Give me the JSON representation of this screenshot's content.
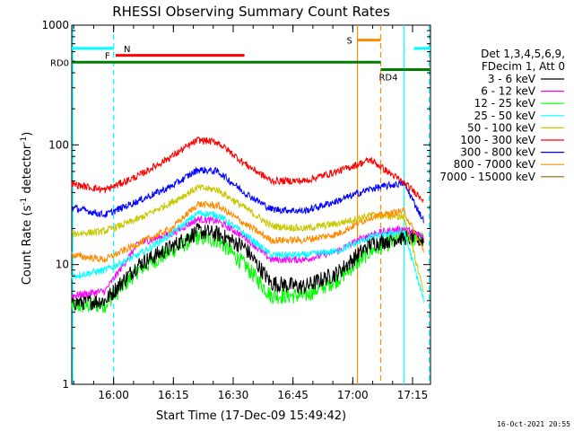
{
  "chart_data": {
    "type": "line",
    "title": "RHESSI Observing Summary Count Rates",
    "xlabel": "Start Time (17-Dec-09 15:49:42)",
    "ylabel_main": "Count Rate (s",
    "ylabel_sup1": "-1",
    "ylabel_mid": " detector",
    "ylabel_sup2": "-1",
    "ylabel_end": ")",
    "y_scale": "log",
    "ylim": [
      1,
      1000
    ],
    "xlim": [
      0,
      5400
    ],
    "x_ticks": [
      {
        "t": 630,
        "label": "16:00"
      },
      {
        "t": 1530,
        "label": "16:15"
      },
      {
        "t": 2430,
        "label": "16:30"
      },
      {
        "t": 3330,
        "label": "16:45"
      },
      {
        "t": 4230,
        "label": "17:00"
      },
      {
        "t": 5130,
        "label": "17:15"
      }
    ],
    "y_ticks": [
      {
        "v": 1,
        "label": "1"
      },
      {
        "v": 10,
        "label": "10"
      },
      {
        "v": 100,
        "label": "100"
      },
      {
        "v": 1000,
        "label": "1000"
      }
    ],
    "legend": {
      "position": "right",
      "header1": "Det 1,3,4,5,6,9,",
      "header2": "FDecim 1, Att 0"
    },
    "series": [
      {
        "name": "3 - 6 keV",
        "color": "#000000",
        "values": [
          [
            0,
            4.8
          ],
          [
            500,
            5.0
          ],
          [
            1000,
            10
          ],
          [
            1500,
            14
          ],
          [
            1900,
            19
          ],
          [
            2200,
            18
          ],
          [
            2600,
            14
          ],
          [
            3000,
            7
          ],
          [
            3500,
            6.5
          ],
          [
            4000,
            8.5
          ],
          [
            4500,
            15
          ],
          [
            5000,
            17
          ],
          [
            5300,
            16
          ]
        ]
      },
      {
        "name": "6 - 12 keV",
        "color": "#ff00ff",
        "values": [
          [
            0,
            5.5
          ],
          [
            500,
            6
          ],
          [
            1000,
            15
          ],
          [
            1500,
            18
          ],
          [
            1900,
            24
          ],
          [
            2200,
            23
          ],
          [
            2600,
            17
          ],
          [
            3000,
            11
          ],
          [
            3500,
            11
          ],
          [
            4000,
            13
          ],
          [
            4500,
            18
          ],
          [
            5000,
            20
          ],
          [
            5300,
            17
          ]
        ]
      },
      {
        "name": "12 - 25 keV",
        "color": "#00ff00",
        "values": [
          [
            0,
            4.5
          ],
          [
            500,
            4.6
          ],
          [
            1000,
            9
          ],
          [
            1500,
            13
          ],
          [
            1900,
            17
          ],
          [
            2200,
            16
          ],
          [
            2600,
            10
          ],
          [
            3000,
            5.5
          ],
          [
            3500,
            5.5
          ],
          [
            4000,
            7.5
          ],
          [
            4500,
            13
          ],
          [
            5000,
            17
          ],
          [
            5300,
            16
          ]
        ]
      },
      {
        "name": "25 - 50 keV",
        "color": "#00ffff",
        "values": [
          [
            0,
            8
          ],
          [
            500,
            9
          ],
          [
            1000,
            12
          ],
          [
            1500,
            18
          ],
          [
            1900,
            27
          ],
          [
            2200,
            26
          ],
          [
            2600,
            18
          ],
          [
            3000,
            12
          ],
          [
            3500,
            12
          ],
          [
            4000,
            13
          ],
          [
            4500,
            17
          ],
          [
            5000,
            19
          ],
          [
            5300,
            5
          ]
        ]
      },
      {
        "name": "50 - 100 keV",
        "color": "#c8c800",
        "values": [
          [
            0,
            18
          ],
          [
            500,
            19
          ],
          [
            1000,
            24
          ],
          [
            1500,
            33
          ],
          [
            1900,
            44
          ],
          [
            2200,
            42
          ],
          [
            2600,
            30
          ],
          [
            3000,
            21
          ],
          [
            3500,
            20
          ],
          [
            4000,
            22
          ],
          [
            4500,
            26
          ],
          [
            5000,
            25
          ],
          [
            5300,
            6
          ]
        ]
      },
      {
        "name": "100 - 300 keV",
        "color": "#ff0000",
        "values": [
          [
            0,
            47
          ],
          [
            500,
            42
          ],
          [
            1000,
            55
          ],
          [
            1500,
            80
          ],
          [
            1900,
            110
          ],
          [
            2200,
            105
          ],
          [
            2600,
            70
          ],
          [
            3000,
            50
          ],
          [
            3500,
            50
          ],
          [
            4000,
            60
          ],
          [
            4500,
            75
          ],
          [
            5000,
            48
          ],
          [
            5300,
            35
          ]
        ]
      },
      {
        "name": "300 - 800 keV",
        "color": "#0000ff",
        "values": [
          [
            0,
            30
          ],
          [
            500,
            26
          ],
          [
            1000,
            34
          ],
          [
            1500,
            45
          ],
          [
            1900,
            62
          ],
          [
            2200,
            60
          ],
          [
            2600,
            40
          ],
          [
            3000,
            29
          ],
          [
            3500,
            28
          ],
          [
            4000,
            34
          ],
          [
            4500,
            43
          ],
          [
            5000,
            48
          ],
          [
            5300,
            23
          ]
        ]
      },
      {
        "name": "800 - 7000 keV",
        "color": "#ff8c00",
        "values": [
          [
            0,
            12
          ],
          [
            500,
            11
          ],
          [
            1000,
            15
          ],
          [
            1500,
            20
          ],
          [
            1900,
            32
          ],
          [
            2200,
            31
          ],
          [
            2600,
            22
          ],
          [
            3000,
            16
          ],
          [
            3500,
            16
          ],
          [
            4000,
            18
          ],
          [
            4500,
            25
          ],
          [
            5000,
            28
          ],
          [
            5300,
            13
          ]
        ]
      },
      {
        "name": "7000 - 15000 keV",
        "color": "#8b6914",
        "values": []
      }
    ],
    "flag_bars": [
      {
        "label": "N",
        "color": "#00ffff",
        "y": 640,
        "segments": [
          [
            0,
            630
          ],
          [
            5150,
            5400
          ]
        ]
      },
      {
        "label": "F",
        "color": "#ff0000",
        "y": 560,
        "segments": [
          [
            660,
            2600
          ]
        ]
      },
      {
        "label": "S",
        "color": "#ff8c00",
        "y": 750,
        "segments": [
          [
            4300,
            4650
          ]
        ]
      },
      {
        "label": "RD0",
        "color": "#008000",
        "y": 490,
        "segments": [
          [
            0,
            4650
          ]
        ]
      },
      {
        "label": "RD4",
        "color": "#008000",
        "y": 425,
        "segments": [
          [
            4650,
            5400
          ]
        ]
      }
    ],
    "vertical_markers": [
      {
        "t": 0,
        "color": "#00ffff",
        "style": "solid"
      },
      {
        "t": 630,
        "color": "#00ffff",
        "style": "dashed"
      },
      {
        "t": 4300,
        "color": "#ff8c00",
        "style": "solid"
      },
      {
        "t": 4650,
        "color": "#ff8c00",
        "style": "dashed"
      },
      {
        "t": 5000,
        "color": "#00ffff",
        "style": "solid"
      },
      {
        "t": 5380,
        "color": "#00ffff",
        "style": "dashed"
      }
    ],
    "grid": false
  },
  "timestamp": "16-Oct-2021 20:55"
}
